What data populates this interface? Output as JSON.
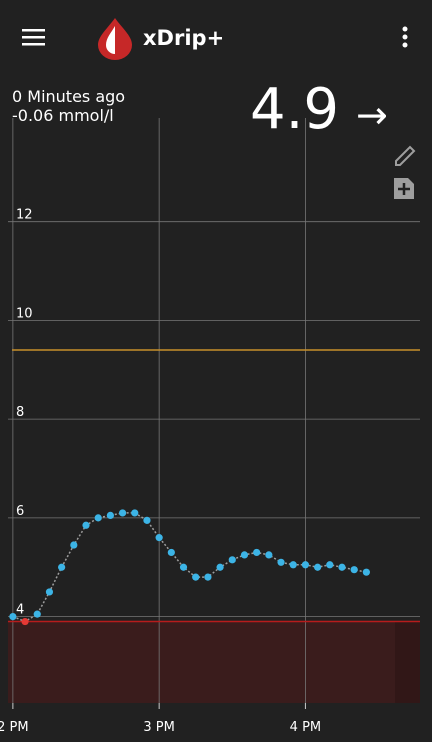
{
  "app_bar": {
    "title": "xDrip+"
  },
  "status": {
    "age": "0 Minutes ago",
    "delta": "-0.06 mmol/l",
    "value": "4.9",
    "arrow": "→"
  },
  "chart_data": {
    "type": "scatter",
    "x": [
      840,
      845,
      850,
      855,
      860,
      865,
      870,
      875,
      880,
      885,
      890,
      895,
      900,
      905,
      910,
      915,
      920,
      925,
      930,
      935,
      940,
      945,
      950,
      955,
      960,
      965,
      970,
      975,
      980,
      985
    ],
    "series": [
      {
        "color": "#3cb4e6",
        "low_color": "#e53935",
        "line_color": "#9e9e9e",
        "values": [
          4.0,
          3.9,
          4.05,
          4.5,
          5.0,
          5.45,
          5.85,
          6.0,
          6.05,
          6.1,
          6.1,
          5.95,
          5.6,
          5.3,
          5.0,
          4.8,
          4.8,
          5.0,
          5.15,
          5.25,
          5.3,
          5.25,
          5.1,
          5.05,
          5.05,
          5.0,
          5.05,
          5.0,
          4.95,
          4.9
        ]
      }
    ],
    "high": 9.4,
    "high_color": "#c8902a",
    "low": 3.9,
    "low_color": "#b71c1c",
    "xlim": [
      838,
      1007
    ],
    "xticks": [
      {
        "value": 840,
        "label": "2 PM"
      },
      {
        "value": 900,
        "label": "3 PM"
      },
      {
        "value": 960,
        "label": "4 PM"
      }
    ],
    "ylim": [
      2.25,
      14.1
    ],
    "yticks": [
      4,
      6,
      8,
      10,
      12
    ],
    "grid": true
  }
}
